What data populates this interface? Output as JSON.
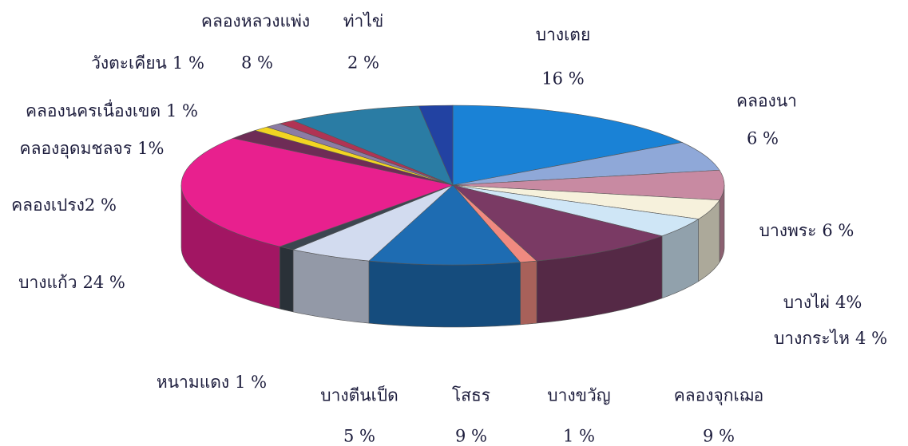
{
  "chart_data": {
    "type": "pie3d",
    "categories": [
      "บางเตย",
      "คลองนา",
      "บางพระ",
      "บางไผ่",
      "บางกระไห",
      "คลองจุกเฌอ",
      "บางขวัญ",
      "โสธร",
      "บางตีนเป็ด",
      "หนามแดง",
      "บางแก้ว",
      "คลองเปรง",
      "คลองอุดมชลจร",
      "คลองนครเนื่องเขต",
      "วังตะเคียน",
      "คลองหลวงแพ่ง",
      "ท่าไข่"
    ],
    "values": [
      16,
      6,
      6,
      4,
      4,
      9,
      1,
      9,
      5,
      1,
      24,
      2,
      1,
      1,
      1,
      8,
      2
    ],
    "value_labels": [
      "16 %",
      "6 %",
      "6 %",
      "4%",
      "4 %",
      "9 %",
      "1 %",
      "9 %",
      "5 %",
      "1 %",
      "24 %",
      "2 %",
      "1%",
      "1 %",
      "1 %",
      "8 %",
      "2 %"
    ],
    "colors": [
      "#1a82d6",
      "#8fa8d8",
      "#c88aa2",
      "#f6f1dc",
      "#cfe6f6",
      "#7a3a64",
      "#f08a80",
      "#1e6cb2",
      "#d2dbef",
      "#3c4650",
      "#e8208e",
      "#6e2c56",
      "#f2d422",
      "#8c7ca4",
      "#b03454",
      "#2a7ca4",
      "#2242a2"
    ]
  }
}
